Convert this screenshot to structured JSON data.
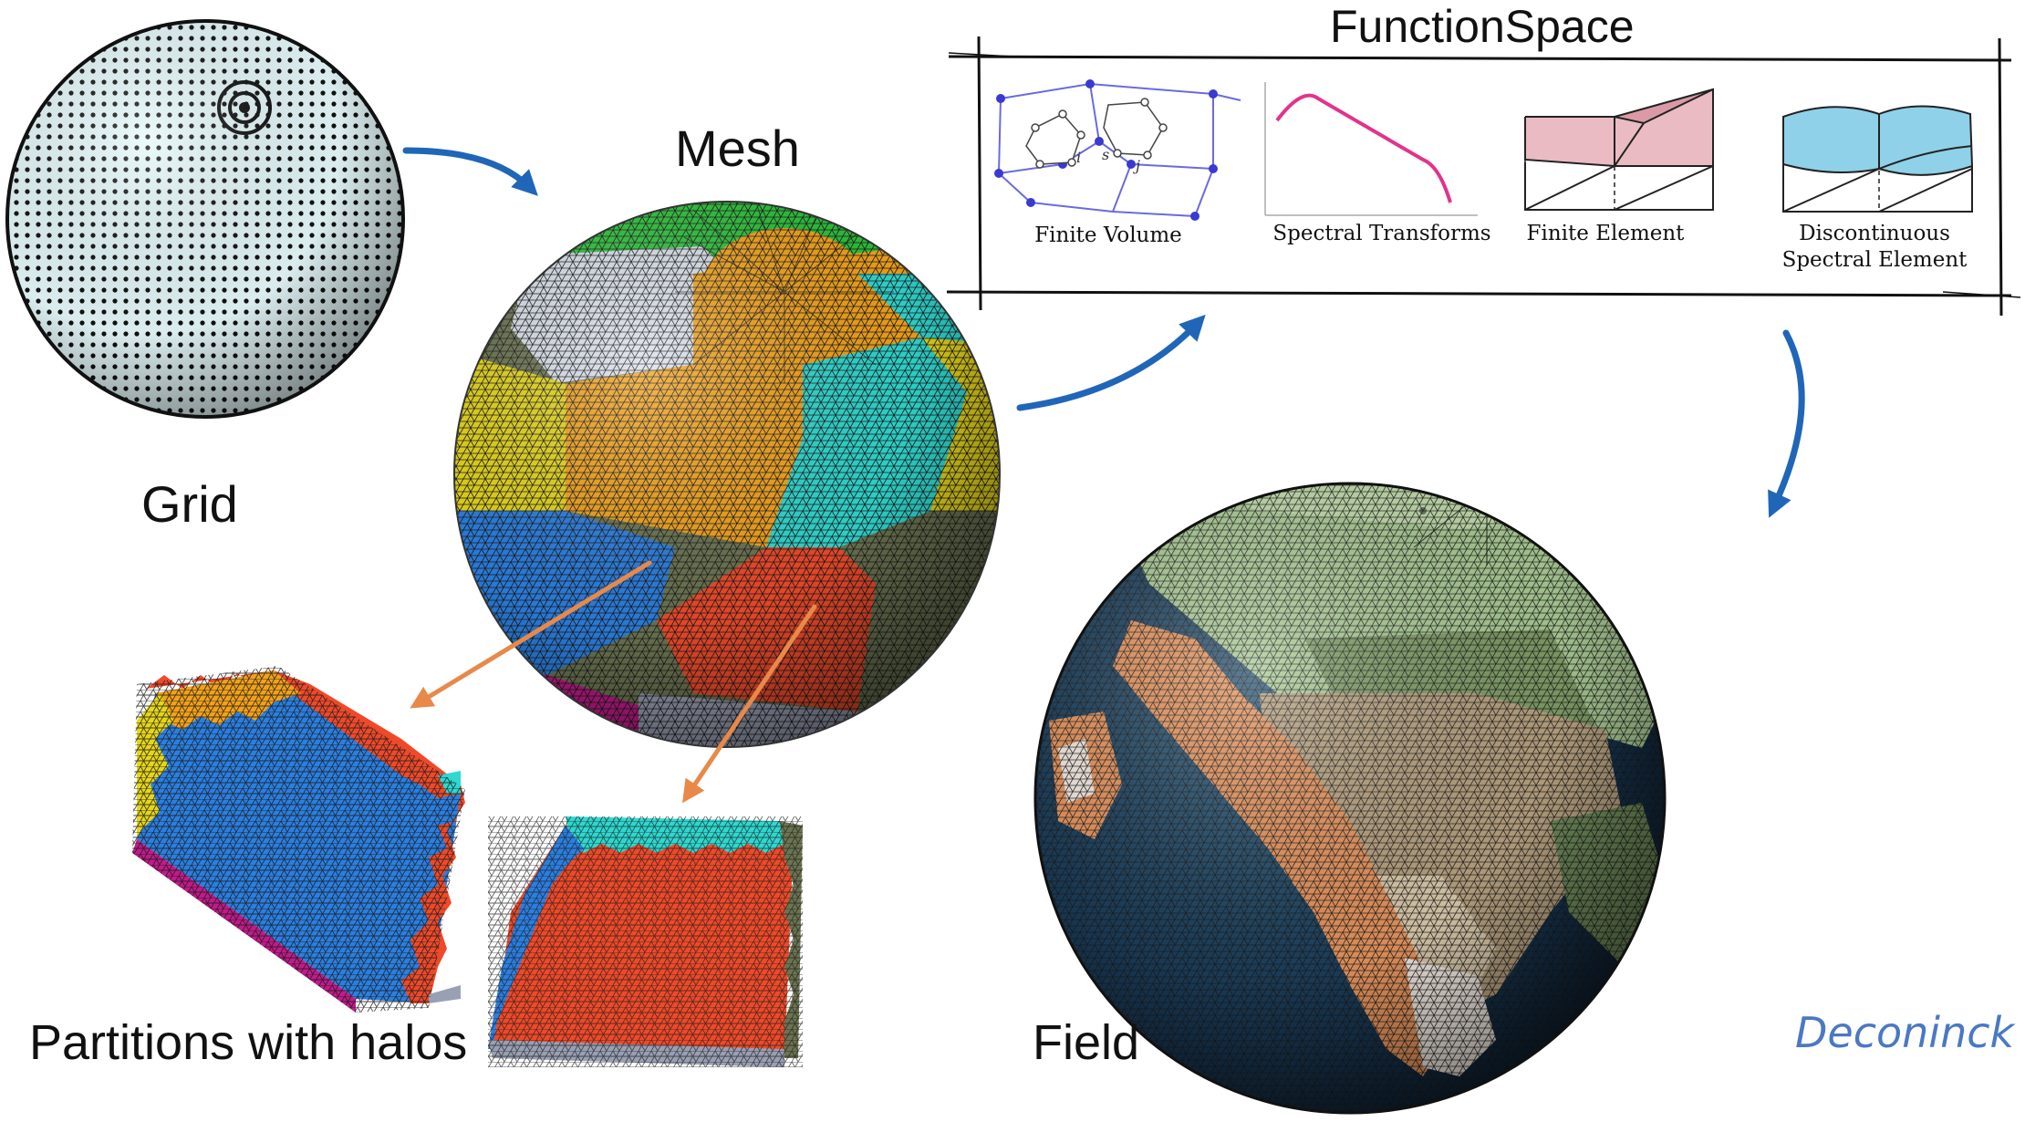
{
  "labels": {
    "grid": "Grid",
    "mesh": "Mesh",
    "partitions": "Partitions with halos",
    "field": "Field",
    "function_space": "FunctionSpace"
  },
  "function_space_items": {
    "finite_volume": "Finite Volume",
    "spectral_transforms": "Spectral Transforms",
    "finite_element": "Finite Element",
    "dse_line1": "Discontinuous",
    "dse_line2": "Spectral Element"
  },
  "fv_node_labels": {
    "i": "i",
    "s": "s",
    "j": "j"
  },
  "citation": "Deconinck e",
  "colors": {
    "arrow_blue": "#1f66b8",
    "arrow_orange": "#e8894a",
    "grid_sphere": "#e6f9fb",
    "mesh_orange": "#f2a21a",
    "mesh_yellow": "#e6d61a",
    "mesh_cyan": "#2fd8d0",
    "mesh_blue": "#2b7fe0",
    "mesh_red": "#ee4a2a",
    "mesh_green": "#2cc23a",
    "mesh_olive": "#6b7451",
    "mesh_magenta": "#c21a8a",
    "mesh_grey": "#9aa0b4",
    "fe_pink": "#e8b4bd",
    "dse_blue": "#8fd1e8",
    "spectral_pink": "#e2338c",
    "citation_blue": "#4a78c4"
  }
}
